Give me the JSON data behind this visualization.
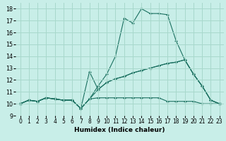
{
  "title": "",
  "xlabel": "Humidex (Indice chaleur)",
  "xlim": [
    -0.5,
    23.5
  ],
  "ylim": [
    9,
    18.5
  ],
  "yticks": [
    9,
    10,
    11,
    12,
    13,
    14,
    15,
    16,
    17,
    18
  ],
  "xticks": [
    0,
    1,
    2,
    3,
    4,
    5,
    6,
    7,
    8,
    9,
    10,
    11,
    12,
    13,
    14,
    15,
    16,
    17,
    18,
    19,
    20,
    21,
    22,
    23
  ],
  "bg_color": "#c8eee8",
  "grid_color": "#a8d8cc",
  "line_color": "#1a7060",
  "lines": [
    {
      "x": [
        0,
        1,
        2,
        3,
        4,
        5,
        6,
        7,
        8,
        9,
        10,
        11,
        12,
        13,
        14,
        15,
        16,
        17,
        18,
        19,
        20,
        21,
        22,
        23
      ],
      "y": [
        10,
        10.3,
        10.2,
        10.5,
        10.4,
        10.3,
        10.3,
        9.6,
        10.4,
        10.5,
        10.5,
        10.5,
        10.5,
        10.5,
        10.5,
        10.5,
        10.5,
        10.2,
        10.2,
        10.2,
        10.2,
        10.0,
        10.0,
        10.0
      ]
    },
    {
      "x": [
        0,
        1,
        2,
        3,
        4,
        5,
        6,
        7,
        8,
        9,
        10,
        11,
        12,
        13,
        14,
        15,
        16,
        17,
        18,
        19,
        20,
        21,
        22,
        23
      ],
      "y": [
        10,
        10.3,
        10.2,
        10.5,
        10.4,
        10.3,
        10.3,
        9.6,
        10.4,
        11.2,
        11.8,
        12.1,
        12.3,
        12.6,
        12.8,
        13.0,
        13.2,
        13.4,
        13.5,
        13.7,
        12.5,
        11.5,
        10.3,
        10.0
      ]
    },
    {
      "x": [
        0,
        1,
        2,
        3,
        4,
        5,
        6,
        7,
        8,
        9,
        10,
        11,
        12,
        13,
        14,
        15,
        16,
        17,
        18,
        19,
        20,
        21,
        22,
        23
      ],
      "y": [
        10,
        10.3,
        10.2,
        10.5,
        10.4,
        10.3,
        10.3,
        9.6,
        10.4,
        11.5,
        12.5,
        14.0,
        17.2,
        16.8,
        18.0,
        17.6,
        17.6,
        17.5,
        15.3,
        13.7,
        12.5,
        11.5,
        10.3,
        10.0
      ]
    },
    {
      "x": [
        0,
        1,
        2,
        3,
        4,
        5,
        6,
        7,
        8,
        9,
        10,
        11,
        12,
        13,
        14,
        15,
        16,
        17,
        18,
        19,
        20,
        21,
        22,
        23
      ],
      "y": [
        10,
        10.3,
        10.2,
        10.5,
        10.4,
        10.3,
        10.3,
        9.6,
        12.7,
        11.2,
        11.8,
        12.1,
        12.3,
        12.6,
        12.8,
        13.0,
        13.2,
        13.4,
        13.5,
        13.7,
        12.5,
        11.5,
        10.3,
        10.0
      ]
    }
  ]
}
